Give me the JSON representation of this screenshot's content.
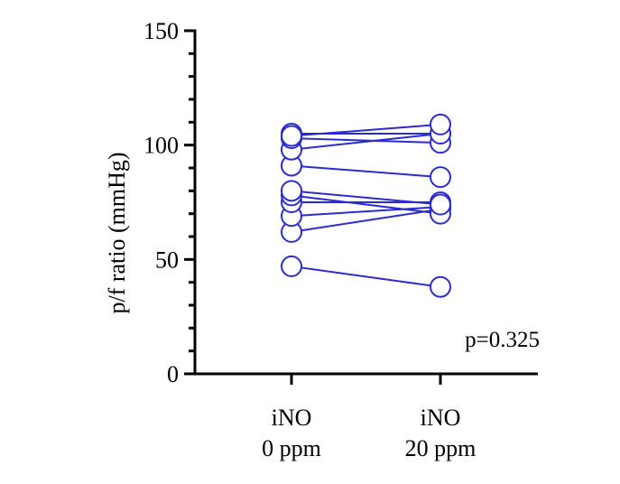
{
  "chart_data": {
    "type": "scatter",
    "paired": true,
    "categories": [
      {
        "line1": "iNO",
        "line2": "0 ppm"
      },
      {
        "line1": "iNO",
        "line2": "20 ppm"
      }
    ],
    "ylabel": "p/f ratio (mmHg)",
    "ylim": [
      0,
      150
    ],
    "yticks": [
      "0",
      "50",
      "100",
      "150"
    ],
    "minor_tick_step": 10,
    "pairs": [
      [
        47,
        38
      ],
      [
        62,
        72
      ],
      [
        69,
        73
      ],
      [
        75,
        75
      ],
      [
        78,
        70
      ],
      [
        80,
        74
      ],
      [
        91,
        86
      ],
      [
        98,
        105
      ],
      [
        103,
        101
      ],
      [
        105,
        105
      ],
      [
        104,
        109
      ]
    ],
    "annotation": "p=0.325",
    "series_color": "#2b2bd0",
    "grid": false
  }
}
